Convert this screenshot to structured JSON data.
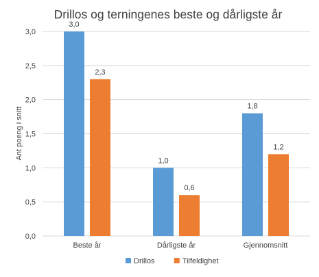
{
  "chart_data": {
    "type": "bar",
    "title": "Drillos og terningenes beste og dårligste år",
    "xlabel": "",
    "ylabel": "Ant poeng i snitt",
    "categories": [
      "Beste år",
      "Dårligste år",
      "Gjennomsnitt"
    ],
    "series": [
      {
        "name": "Drillos",
        "values": [
          3.0,
          1.0,
          1.8
        ],
        "labels": [
          "3,0",
          "1,0",
          "1,8"
        ],
        "color": "#5b9bd5"
      },
      {
        "name": "Tilfeldighet",
        "values": [
          2.3,
          0.6,
          1.2
        ],
        "labels": [
          "2,3",
          "0,6",
          "1,2"
        ],
        "color": "#ed7d31"
      }
    ],
    "ylim": [
      0,
      3.0
    ],
    "yticks": [
      0,
      0.5,
      1.0,
      1.5,
      2.0,
      2.5,
      3.0
    ],
    "ytick_labels": [
      "0,0",
      "0,5",
      "1,0",
      "1,5",
      "2,0",
      "2,5",
      "3,0"
    ],
    "grid": true,
    "legend_position": "bottom",
    "colors": {
      "gridline": "#d9d9d9",
      "text": "#404040"
    }
  }
}
